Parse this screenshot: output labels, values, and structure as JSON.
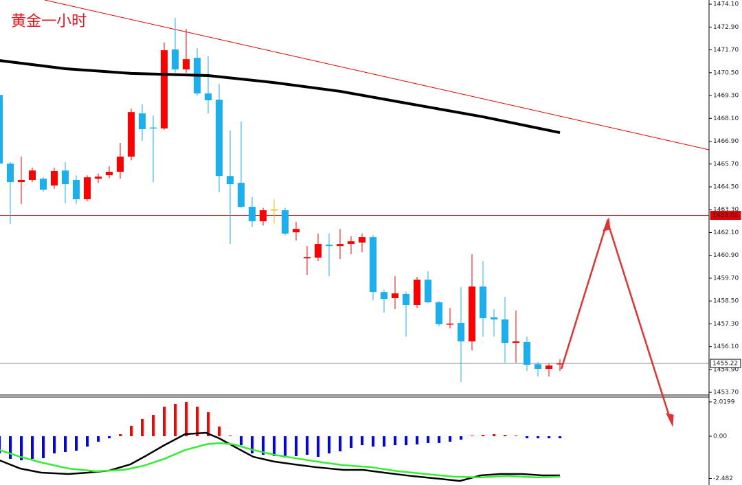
{
  "chart_data": [
    {
      "type": "candlestick",
      "title": "黄金一小时",
      "title_color": "#e8141e",
      "up_color": "#ff0000",
      "down_color": "#1ab0ee",
      "doji_color": "#f0c000",
      "open": [
        1469.33,
        1465.72,
        1464.75,
        1464.86,
        1464.93,
        1464.57,
        1465.36,
        1464.86,
        1463.85,
        1464.93,
        1465.11,
        1465.29,
        1466.09,
        1468.36,
        1467.62,
        1467.57,
        1471.72,
        1470.67,
        1471.28,
        1469.41,
        1469.08,
        1465.07,
        1464.71,
        1463.45,
        1462.69,
        1463.31,
        1463.27,
        1462.11,
        1460.74,
        1460.78,
        1461.46,
        1461.39,
        1461.5,
        1461.57,
        1461.86,
        1458.97,
        1458.65,
        1458.87,
        1458.29,
        1459.62,
        1458.43,
        1457.28,
        1457.35,
        1456.38,
        1459.26,
        1457.64,
        1457.53,
        1456.3,
        1456.34,
        1455.18,
        1454.93,
        1455.2
      ],
      "high": [
        1469.4,
        1465.8,
        1466.09,
        1465.51,
        1465.0,
        1465.5,
        1465.8,
        1465.1,
        1465.1,
        1465.2,
        1465.58,
        1466.81,
        1468.61,
        1468.83,
        1468.25,
        1472.08,
        1473.38,
        1472.8,
        1471.79,
        1471.36,
        1469.91,
        1467.46,
        1467.93,
        1463.96,
        1463.4,
        1463.85,
        1463.4,
        1462.66,
        1461.39,
        1462.04,
        1462.04,
        1462.29,
        1461.9,
        1462.04,
        1461.97,
        1459.1,
        1459.8,
        1459.0,
        1459.77,
        1460.06,
        1458.5,
        1458.14,
        1459.23,
        1460.96,
        1460.6,
        1458.07,
        1458.72,
        1458.0,
        1456.63,
        1455.3,
        1455.2,
        1455.44
      ],
      "low": [
        1465.65,
        1462.55,
        1463.6,
        1464.75,
        1464.25,
        1464.4,
        1463.63,
        1463.6,
        1463.75,
        1464.7,
        1464.95,
        1464.93,
        1465.9,
        1466.92,
        1464.75,
        1467.5,
        1470.5,
        1470.5,
        1469.3,
        1468.36,
        1464.21,
        1461.5,
        1463.4,
        1462.4,
        1462.47,
        1462.58,
        1461.95,
        1461.68,
        1459.88,
        1460.6,
        1459.8,
        1460.71,
        1460.96,
        1461.06,
        1458.54,
        1457.89,
        1458.07,
        1456.63,
        1458.14,
        1458.4,
        1457.17,
        1457.06,
        1454.24,
        1455.9,
        1456.63,
        1456.63,
        1455.26,
        1455.26,
        1454.82,
        1454.53,
        1454.53,
        1454.82
      ],
      "close": [
        1465.72,
        1464.75,
        1464.86,
        1465.36,
        1464.35,
        1465.33,
        1464.64,
        1463.85,
        1465.0,
        1465.04,
        1465.29,
        1466.09,
        1468.43,
        1467.53,
        1467.58,
        1471.68,
        1470.67,
        1471.21,
        1469.41,
        1469.05,
        1465.07,
        1464.64,
        1463.45,
        1462.69,
        1463.27,
        1463.31,
        1462.04,
        1462.29,
        1460.81,
        1461.5,
        1461.39,
        1461.5,
        1461.64,
        1461.86,
        1458.97,
        1458.61,
        1458.9,
        1458.29,
        1459.62,
        1458.43,
        1457.28,
        1457.31,
        1456.38,
        1459.26,
        1457.6,
        1457.53,
        1456.3,
        1456.38,
        1455.15,
        1454.93,
        1455.11,
        1455.22
      ],
      "ma": {
        "color": "#000000",
        "x": [
          0,
          6,
          12,
          19,
          25,
          31,
          37,
          44,
          51
        ],
        "values": [
          1471.14,
          1470.71,
          1470.46,
          1470.35,
          1469.98,
          1469.52,
          1468.9,
          1468.18,
          1467.35
        ]
      },
      "hlines": [
        {
          "value": 1463.0,
          "label": "1463.00",
          "color": "#e00000"
        },
        {
          "value": 1455.22,
          "label": "1455.22",
          "color": "#888888"
        }
      ],
      "ylim": [
        1453.56,
        1474.32
      ],
      "yticks": [
        {
          "value": 1474.1,
          "label": "1474.10"
        },
        {
          "value": 1472.9,
          "label": "1472.90"
        },
        {
          "value": 1471.7,
          "label": "1471.70"
        },
        {
          "value": 1470.5,
          "label": "1470.50"
        },
        {
          "value": 1469.3,
          "label": "1469.30"
        },
        {
          "value": 1468.1,
          "label": "1468.10"
        },
        {
          "value": 1466.9,
          "label": "1466.90"
        },
        {
          "value": 1465.7,
          "label": "1465.70"
        },
        {
          "value": 1464.5,
          "label": "1464.50"
        },
        {
          "value": 1463.3,
          "label": "1463.30"
        },
        {
          "value": 1462.1,
          "label": "1462.10"
        },
        {
          "value": 1460.9,
          "label": "1460.90"
        },
        {
          "value": 1459.7,
          "label": "1459.70"
        },
        {
          "value": 1458.5,
          "label": "1458.50"
        },
        {
          "value": 1457.3,
          "label": "1457.30"
        },
        {
          "value": 1456.1,
          "label": "1456.10"
        },
        {
          "value": 1454.9,
          "label": "1454.90"
        },
        {
          "value": 1453.7,
          "label": "1453.70"
        }
      ]
    },
    {
      "type": "macd",
      "pos_color": "#ff0000",
      "neg_color": "#0000ff",
      "histogram": [
        -1.01,
        -1.33,
        -1.41,
        -1.33,
        -1.29,
        -1.01,
        -0.93,
        -0.85,
        -0.61,
        -0.32,
        -0.12,
        0.12,
        0.61,
        1.01,
        1.25,
        1.74,
        1.9,
        2.02,
        1.74,
        1.41,
        0.57,
        0.04,
        -0.53,
        -1.01,
        -1.09,
        -1.17,
        -1.25,
        -1.17,
        -1.09,
        -1.21,
        -1.01,
        -0.89,
        -0.69,
        -0.53,
        -0.61,
        -0.61,
        -0.53,
        -0.53,
        -0.48,
        -0.4,
        -0.4,
        -0.32,
        -0.2,
        0.04,
        0.08,
        0.12,
        0.08,
        0.04,
        -0.12,
        -0.12,
        -0.12,
        -0.12
      ],
      "lines": [
        {
          "color": "#000000",
          "x": [
            0,
            1.9,
            3.8,
            6.3,
            8.1,
            10,
            11.9,
            13.4,
            15,
            16.9,
            18.8,
            20,
            21.6,
            23.1,
            25,
            26.9,
            28.8,
            31.3,
            33.1,
            35,
            37.5,
            40,
            41.9,
            43.8,
            45.6,
            47.5,
            49.4,
            51
          ],
          "values": [
            -1.41,
            -1.9,
            -2.14,
            -2.22,
            -2.14,
            -2.02,
            -1.66,
            -1.13,
            -0.53,
            0.12,
            0.2,
            -0.12,
            -0.69,
            -1.21,
            -1.49,
            -1.66,
            -1.82,
            -1.98,
            -1.98,
            -2.14,
            -2.34,
            -2.5,
            -2.63,
            -2.3,
            -2.22,
            -2.22,
            -2.3,
            -2.3
          ]
        },
        {
          "color": "#33ee33",
          "x": [
            0,
            1.9,
            3.8,
            6.3,
            8.8,
            11.3,
            13.1,
            15,
            16.9,
            18.8,
            20,
            21.3,
            23.1,
            25,
            26.9,
            29.4,
            31.3,
            33.8,
            36.3,
            38.8,
            41.3,
            43.8,
            46.3,
            48.8,
            51
          ],
          "values": [
            -0.81,
            -1.21,
            -1.54,
            -1.9,
            -2.06,
            -1.98,
            -1.74,
            -1.33,
            -0.81,
            -0.48,
            -0.4,
            -0.48,
            -0.81,
            -1.09,
            -1.29,
            -1.54,
            -1.7,
            -1.82,
            -2.06,
            -2.22,
            -2.38,
            -2.42,
            -2.34,
            -2.42,
            -2.38
          ]
        }
      ],
      "ylim": [
        -2.868,
        2.343
      ],
      "yticks": [
        2.0199,
        {
          "value": 0,
          "label": "0.00"
        },
        -2.482
      ]
    }
  ]
}
